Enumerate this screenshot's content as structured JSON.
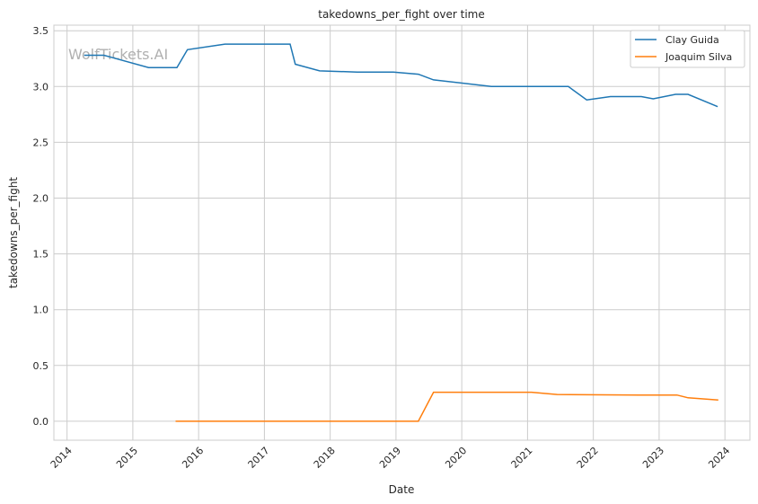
{
  "chart_data": {
    "type": "line",
    "title": "takedowns_per_fight over time",
    "xlabel": "Date",
    "ylabel": "takedowns_per_fight",
    "xlim": [
      2013.8,
      2024.38
    ],
    "ylim": [
      -0.17,
      3.55
    ],
    "xticks": [
      2014,
      2015,
      2016,
      2017,
      2018,
      2019,
      2020,
      2021,
      2022,
      2023,
      2024
    ],
    "xtick_labels": [
      "2014",
      "2015",
      "2016",
      "2017",
      "2018",
      "2019",
      "2020",
      "2021",
      "2022",
      "2023",
      "2024"
    ],
    "yticks": [
      0,
      0.5,
      1,
      1.5,
      2,
      2.5,
      3,
      3.5
    ],
    "ytick_labels": [
      "0.0",
      "0.5",
      "1.0",
      "1.5",
      "2.0",
      "2.5",
      "3.0",
      "3.5"
    ],
    "grid": true,
    "legend_position": "top-right",
    "watermark": "WolfTickets.AI",
    "series": [
      {
        "name": "Clay Guida",
        "color": "#1f77b4",
        "x": [
          2014.26,
          2014.56,
          2015.24,
          2015.67,
          2015.83,
          2016.4,
          2017.39,
          2017.47,
          2017.84,
          2018.41,
          2018.96,
          2019.34,
          2019.57,
          2020.45,
          2021.62,
          2021.9,
          2022.26,
          2022.73,
          2022.91,
          2023.25,
          2023.44,
          2023.89
        ],
        "y": [
          3.28,
          3.28,
          3.17,
          3.17,
          3.33,
          3.38,
          3.38,
          3.2,
          3.14,
          3.13,
          3.13,
          3.11,
          3.06,
          3.0,
          3.0,
          2.88,
          2.91,
          2.91,
          2.89,
          2.93,
          2.93,
          2.82
        ]
      },
      {
        "name": "Joaquim Silva",
        "color": "#ff7f0e",
        "x": [
          2015.65,
          2019.34,
          2019.57,
          2021.06,
          2021.45,
          2022.7,
          2023.27,
          2023.44,
          2023.9
        ],
        "y": [
          0.0,
          0.0,
          0.26,
          0.26,
          0.24,
          0.235,
          0.235,
          0.21,
          0.19
        ]
      }
    ]
  }
}
